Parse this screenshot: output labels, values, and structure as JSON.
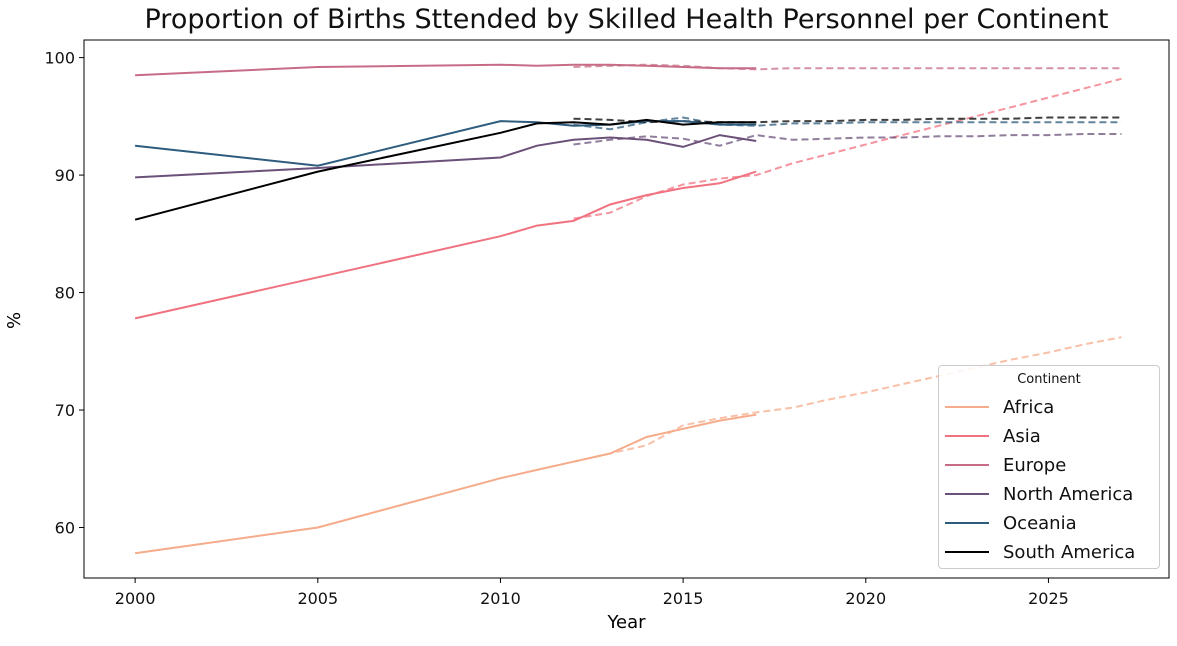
{
  "chart_data": {
    "type": "line",
    "title": "Proportion of Births Sttended by Skilled Health Personnel per Continent",
    "xlabel": "Year",
    "ylabel": "%",
    "xlim": [
      1998.6,
      2028.3
    ],
    "ylim": [
      55.7,
      101.5
    ],
    "xticks": [
      2000,
      2005,
      2010,
      2015,
      2020,
      2025
    ],
    "yticks": [
      60,
      70,
      80,
      90,
      100
    ],
    "legend_title": "Continent",
    "legend_position": "lower-right",
    "grid": false,
    "series": [
      {
        "name": "Africa",
        "color": "#f6ab8a",
        "actual": {
          "x": [
            2000,
            2005,
            2010,
            2011,
            2012,
            2013,
            2014,
            2015,
            2016,
            2017
          ],
          "y": [
            57.8,
            60.0,
            64.2,
            64.9,
            65.6,
            66.3,
            67.7,
            68.4,
            69.1,
            69.6
          ]
        },
        "forecast": {
          "x": [
            2012,
            2013,
            2014,
            2015,
            2016,
            2017,
            2018,
            2019,
            2020,
            2021,
            2022,
            2023,
            2024,
            2025,
            2026,
            2027
          ],
          "y": [
            65.6,
            66.3,
            67.0,
            68.7,
            69.3,
            69.8,
            70.2,
            70.9,
            71.5,
            72.2,
            72.9,
            73.6,
            74.3,
            74.9,
            75.6,
            76.2
          ]
        }
      },
      {
        "name": "Asia",
        "color": "#f07280",
        "actual": {
          "x": [
            2000,
            2005,
            2010,
            2011,
            2012,
            2013,
            2014,
            2015,
            2016,
            2017
          ],
          "y": [
            77.8,
            81.3,
            84.8,
            85.7,
            86.1,
            87.5,
            88.3,
            88.9,
            89.3,
            90.3
          ]
        },
        "forecast": {
          "x": [
            2012,
            2013,
            2014,
            2015,
            2016,
            2017,
            2018,
            2019,
            2020,
            2021,
            2022,
            2023,
            2024,
            2025,
            2026,
            2027
          ],
          "y": [
            86.3,
            86.8,
            88.2,
            89.2,
            89.7,
            90.0,
            91.0,
            91.8,
            92.6,
            93.4,
            94.2,
            95.0,
            95.8,
            96.6,
            97.4,
            98.2
          ]
        }
      },
      {
        "name": "Europe",
        "color": "#c76c87",
        "actual": {
          "x": [
            2000,
            2005,
            2010,
            2011,
            2012,
            2013,
            2014,
            2015,
            2016,
            2017
          ],
          "y": [
            98.5,
            99.2,
            99.4,
            99.3,
            99.4,
            99.4,
            99.3,
            99.2,
            99.1,
            99.1
          ]
        },
        "forecast": {
          "x": [
            2012,
            2013,
            2014,
            2015,
            2016,
            2017,
            2018,
            2019,
            2020,
            2021,
            2022,
            2023,
            2024,
            2025,
            2026,
            2027
          ],
          "y": [
            99.2,
            99.3,
            99.4,
            99.3,
            99.1,
            99.0,
            99.1,
            99.1,
            99.1,
            99.1,
            99.1,
            99.1,
            99.1,
            99.1,
            99.1,
            99.1
          ]
        }
      },
      {
        "name": "North America",
        "color": "#6b5179",
        "actual": {
          "x": [
            2000,
            2005,
            2010,
            2011,
            2012,
            2013,
            2014,
            2015,
            2016,
            2017
          ],
          "y": [
            89.8,
            90.6,
            91.5,
            92.5,
            93.0,
            93.2,
            93.0,
            92.4,
            93.4,
            92.9
          ]
        },
        "forecast": {
          "x": [
            2012,
            2013,
            2014,
            2015,
            2016,
            2017,
            2018,
            2019,
            2020,
            2021,
            2022,
            2023,
            2024,
            2025,
            2026,
            2027
          ],
          "y": [
            92.6,
            93.0,
            93.3,
            93.1,
            92.5,
            93.4,
            93.0,
            93.1,
            93.2,
            93.2,
            93.3,
            93.3,
            93.4,
            93.4,
            93.5,
            93.5
          ]
        }
      },
      {
        "name": "Oceania",
        "color": "#2e5c7e",
        "actual": {
          "x": [
            2000,
            2005,
            2010,
            2011,
            2012,
            2013,
            2014,
            2015,
            2016,
            2017
          ],
          "y": [
            92.5,
            90.8,
            94.6,
            94.5,
            94.2,
            94.3,
            94.6,
            94.6,
            94.3,
            94.3
          ]
        },
        "forecast": {
          "x": [
            2012,
            2013,
            2014,
            2015,
            2016,
            2017,
            2018,
            2019,
            2020,
            2021,
            2022,
            2023,
            2024,
            2025,
            2026,
            2027
          ],
          "y": [
            94.3,
            93.9,
            94.5,
            94.9,
            94.3,
            94.2,
            94.4,
            94.4,
            94.5,
            94.5,
            94.5,
            94.5,
            94.5,
            94.5,
            94.5,
            94.5
          ]
        }
      },
      {
        "name": "South America",
        "color": "#000000",
        "actual": {
          "x": [
            2000,
            2005,
            2010,
            2011,
            2012,
            2013,
            2014,
            2015,
            2016,
            2017
          ],
          "y": [
            86.2,
            90.3,
            93.6,
            94.4,
            94.5,
            94.3,
            94.7,
            94.3,
            94.5,
            94.5
          ]
        },
        "forecast": {
          "x": [
            2012,
            2013,
            2014,
            2015,
            2016,
            2017,
            2018,
            2019,
            2020,
            2021,
            2022,
            2023,
            2024,
            2025,
            2026,
            2027
          ],
          "y": [
            94.8,
            94.7,
            94.5,
            94.6,
            94.5,
            94.5,
            94.6,
            94.6,
            94.7,
            94.7,
            94.8,
            94.8,
            94.8,
            94.9,
            94.9,
            94.9
          ]
        }
      }
    ]
  }
}
